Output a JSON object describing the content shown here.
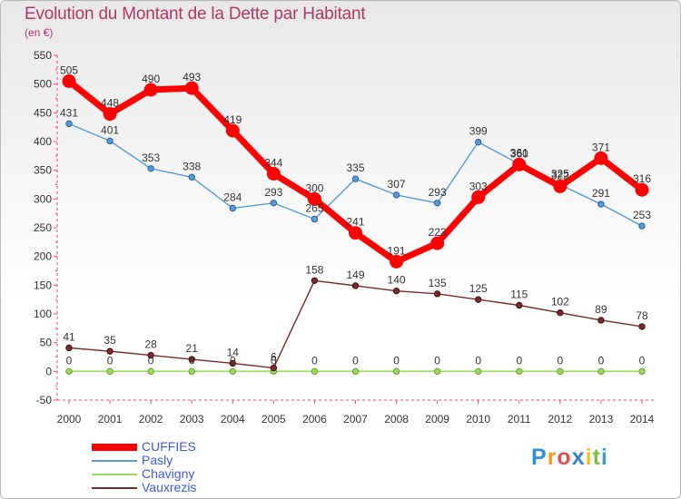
{
  "header": {
    "title": "Evolution du Montant de la Dette par Habitant",
    "subtitle": "(en €)"
  },
  "logo": {
    "letters": [
      "P",
      "r",
      "o",
      "x",
      "i",
      "t",
      "i"
    ]
  },
  "chart_data": {
    "type": "line",
    "title": "Evolution du Montant de la Dette par Habitant",
    "subtitle": "(en €)",
    "x": [
      2000,
      2001,
      2002,
      2003,
      2004,
      2005,
      2006,
      2007,
      2008,
      2009,
      2010,
      2011,
      2012,
      2013,
      2014
    ],
    "ylim": [
      -50,
      550
    ],
    "yticks": [
      -50,
      0,
      50,
      100,
      150,
      200,
      250,
      300,
      350,
      400,
      450,
      500,
      550
    ],
    "grid": false,
    "legend_position": "bottom-left",
    "series": [
      {
        "name": "CUFFIES",
        "color": "#ff0000",
        "values": [
          505,
          448,
          490,
          493,
          419,
          344,
          300,
          241,
          191,
          223,
          303,
          360,
          322,
          371,
          316
        ]
      },
      {
        "name": "Pasly",
        "color": "#5b9bd5",
        "values": [
          431,
          401,
          353,
          338,
          284,
          293,
          265,
          335,
          307,
          293,
          399,
          361,
          325,
          291,
          253
        ]
      },
      {
        "name": "Chavigny",
        "color": "#9ed85f",
        "values": [
          0,
          0,
          0,
          0,
          0,
          0,
          0,
          0,
          0,
          0,
          0,
          0,
          0,
          0,
          0
        ]
      },
      {
        "name": "Vauxrezis",
        "color": "#7a2a2a",
        "values": [
          41,
          35,
          28,
          21,
          14,
          6,
          158,
          149,
          140,
          135,
          125,
          115,
          102,
          89,
          78
        ]
      }
    ]
  }
}
